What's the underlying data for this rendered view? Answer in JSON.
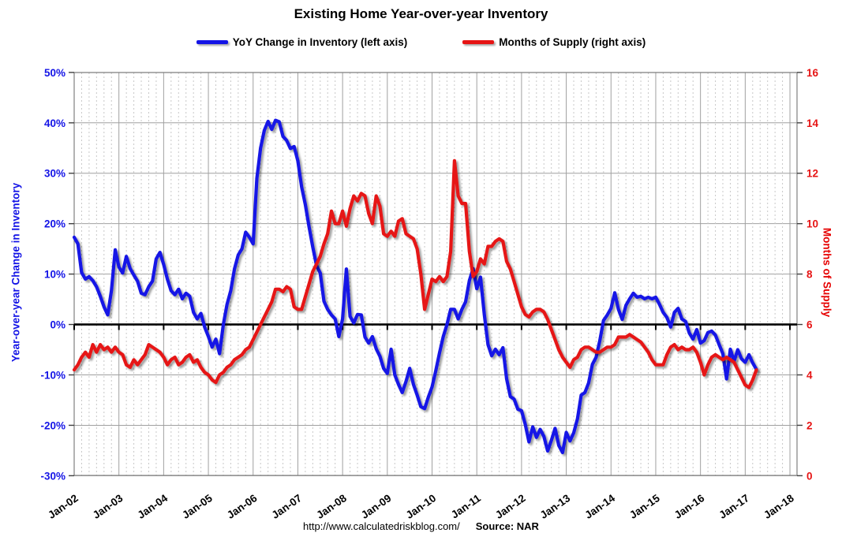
{
  "title": "Existing Home Year-over-year Inventory",
  "footer": {
    "url": "http://www.calculatedriskblog.com/",
    "source": "Source: NAR"
  },
  "colors": {
    "blue_series": "#1414e6",
    "red_series": "#e61414",
    "zero_line": "#000000",
    "grid_major": "#a0a0a0",
    "grid_minor": "#c8c8c8",
    "frame": "#808080"
  },
  "chart_data": {
    "type": "line",
    "title": "Existing Home Year-over-year Inventory",
    "x_start": "Jan-2002",
    "x_end": "Apr-2017",
    "points_per_year": 12,
    "x_tick_labels": [
      "Jan-02",
      "Jan-03",
      "Jan-04",
      "Jan-05",
      "Jan-06",
      "Jan-07",
      "Jan-08",
      "Jan-09",
      "Jan-10",
      "Jan-11",
      "Jan-12",
      "Jan-13",
      "Jan-14",
      "Jan-15",
      "Jan-16",
      "Jan-17",
      "Jan-18"
    ],
    "left_axis": {
      "label": "Year-over-year Change in Inventory",
      "color": "#1414e6",
      "min": -30,
      "max": 50,
      "tick_labels": [
        "50%",
        "40%",
        "30%",
        "20%",
        "10%",
        "0%",
        "-10%",
        "-20%",
        "-30%"
      ],
      "tick_values": [
        50,
        40,
        30,
        20,
        10,
        0,
        -10,
        -20,
        -30
      ]
    },
    "right_axis": {
      "label": "Months of Supply",
      "color": "#e61414",
      "min": 0,
      "max": 16,
      "tick_labels": [
        "16",
        "14",
        "12",
        "10",
        "8",
        "6",
        "4",
        "2",
        "0"
      ],
      "tick_values": [
        16,
        14,
        12,
        10,
        8,
        6,
        4,
        2,
        0
      ]
    },
    "grid": {
      "minor_vertical_every_months": 2,
      "major_vertical_every_months": 12,
      "horizontal_every_left_units": 10
    },
    "series": [
      {
        "name": "YoY Change in Inventory (left axis)",
        "axis": "left",
        "color": "#1414e6",
        "unit": "%",
        "values": [
          17.3,
          16,
          10.3,
          9,
          9.5,
          8.7,
          7.5,
          5.6,
          3.5,
          1.9,
          6.7,
          14.8,
          11.4,
          10.2,
          13.5,
          11.1,
          9.8,
          8.6,
          6.2,
          5.9,
          7.5,
          8.6,
          13,
          14.3,
          11.9,
          9,
          6.7,
          5.9,
          7,
          5.1,
          6.2,
          5.6,
          2.4,
          1.1,
          2.2,
          -0.5,
          -2.4,
          -4.5,
          -2.9,
          -5.8,
          0,
          4,
          6.7,
          11,
          13.8,
          15,
          18.3,
          17.3,
          16,
          29,
          35,
          38.5,
          40.3,
          38.7,
          40.5,
          40.2,
          37.3,
          36.5,
          34.9,
          35.3,
          32.5,
          27.3,
          23.8,
          19.4,
          15.4,
          11.7,
          10.2,
          4.6,
          3,
          1.9,
          1.1,
          -2.4,
          1.1,
          11,
          1.6,
          0.3,
          2,
          1.9,
          -2.5,
          -3.7,
          -2.4,
          -4.8,
          -6.3,
          -8.7,
          -9.7,
          -4.9,
          -10,
          -11.9,
          -13.5,
          -11.3,
          -8.7,
          -11.9,
          -14,
          -16.3,
          -16.7,
          -14.4,
          -12.4,
          -9.2,
          -5.6,
          -2.4,
          0,
          3,
          3,
          1.1,
          3,
          4.5,
          8.7,
          11.1,
          7.1,
          9.4,
          2,
          -4,
          -6.2,
          -4.9,
          -6,
          -4.6,
          -10.8,
          -14.3,
          -14.8,
          -16.8,
          -17.1,
          -19.8,
          -23.3,
          -20.3,
          -22.4,
          -20.8,
          -22.2,
          -25.1,
          -23,
          -20.6,
          -24,
          -25.4,
          -21.4,
          -23.1,
          -21.5,
          -18.7,
          -14,
          -13.5,
          -11.6,
          -7.9,
          -6.5,
          -3.2,
          0.8,
          1.9,
          3.2,
          6.3,
          3,
          1,
          3.8,
          5.1,
          6.2,
          5.4,
          5.6,
          5.1,
          5.4,
          5.1,
          5.4,
          4,
          2.4,
          1.4,
          -0.5,
          2.4,
          3.2,
          1.1,
          0.6,
          -1.7,
          -2.9,
          -1,
          -3.7,
          -3.2,
          -1.6,
          -1.3,
          -2.1,
          -4,
          -5.8,
          -10.8,
          -4.9,
          -7.3,
          -5,
          -6.8,
          -7.5,
          -6,
          -7.6,
          -8.9
        ]
      },
      {
        "name": "Months of Supply (right axis)",
        "axis": "right",
        "color": "#e61414",
        "unit": "months",
        "values": [
          4.2,
          4.4,
          4.7,
          4.9,
          4.7,
          5.2,
          4.9,
          5.2,
          5,
          5.1,
          4.9,
          5.1,
          4.9,
          4.8,
          4.4,
          4.3,
          4.6,
          4.4,
          4.6,
          4.8,
          5.2,
          5.1,
          5,
          4.9,
          4.7,
          4.4,
          4.6,
          4.7,
          4.4,
          4.5,
          4.7,
          4.8,
          4.5,
          4.6,
          4.3,
          4.1,
          4,
          3.8,
          3.7,
          4,
          4.1,
          4.3,
          4.4,
          4.6,
          4.7,
          4.8,
          5,
          5.1,
          5.4,
          5.7,
          6,
          6.3,
          6.6,
          6.9,
          7.4,
          7.4,
          7.3,
          7.5,
          7.4,
          6.7,
          6.6,
          6.6,
          7.1,
          7.6,
          8.1,
          8.4,
          8.7,
          9.2,
          9.6,
          10.5,
          10,
          10,
          10.5,
          9.9,
          10.6,
          11.1,
          10.9,
          11.2,
          11.1,
          10.4,
          10,
          11.1,
          10.7,
          9.6,
          9.5,
          9.7,
          9.5,
          10.1,
          10.2,
          9.6,
          9.5,
          9.4,
          9,
          8,
          6.6,
          7.2,
          7.8,
          7.7,
          7.9,
          7.7,
          7.9,
          8.9,
          12.5,
          11.1,
          10.8,
          10.8,
          8.9,
          7.9,
          8.1,
          8.6,
          8.4,
          9.1,
          9.1,
          9.3,
          9.4,
          9.3,
          8.5,
          8.2,
          7.7,
          7.2,
          6.7,
          6.4,
          6.3,
          6.5,
          6.6,
          6.6,
          6.5,
          6.2,
          5.8,
          5.4,
          5,
          4.7,
          4.5,
          4.3,
          4.6,
          4.7,
          5,
          5.1,
          5.1,
          5,
          4.9,
          4.9,
          5,
          5.1,
          5.1,
          5.2,
          5.5,
          5.5,
          5.5,
          5.6,
          5.5,
          5.4,
          5.3,
          5.1,
          4.9,
          4.6,
          4.4,
          4.4,
          4.4,
          4.8,
          5.1,
          5.2,
          5,
          5.1,
          5,
          5,
          5.1,
          4.9,
          4.5,
          4,
          4.4,
          4.7,
          4.8,
          4.7,
          4.6,
          4.7,
          4.6,
          4.5,
          4.2,
          3.9,
          3.6,
          3.5,
          3.8,
          4.2
        ]
      }
    ],
    "legend": [
      {
        "label": "YoY Change in Inventory (left axis)",
        "color": "#1414e6"
      },
      {
        "label": "Months of Supply (right axis)",
        "color": "#e61414"
      }
    ]
  }
}
